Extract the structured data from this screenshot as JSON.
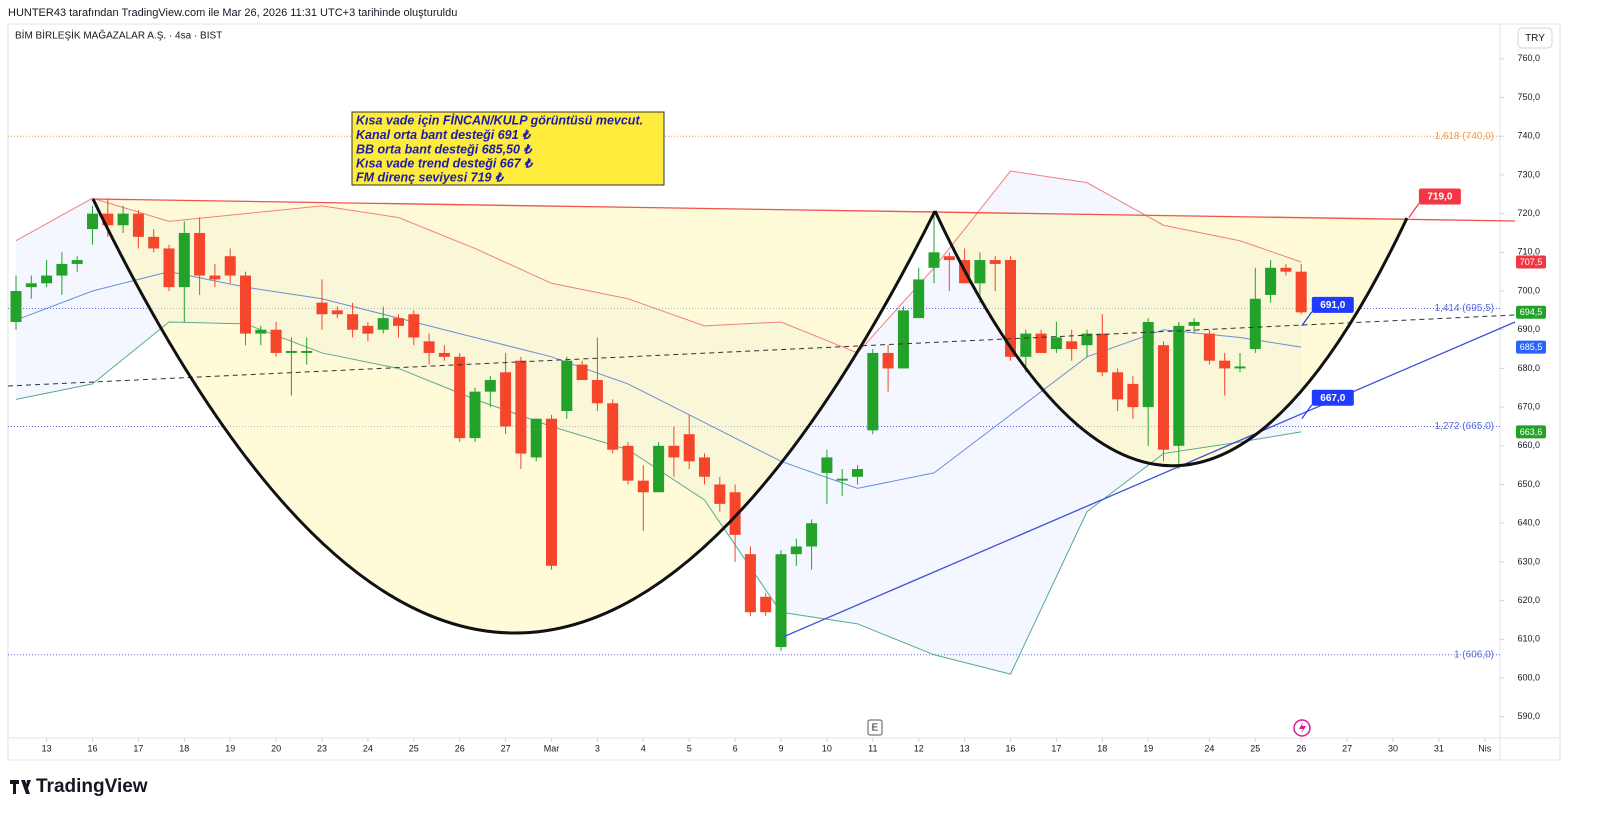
{
  "header": {
    "text": "HUNTER43 tarafından TradingView.com ile Mar 26, 2026 11:31 UTC+3 tarihinde oluşturuldu"
  },
  "symbol": "BİM BİRLEŞİK MAĞAZALAR A.Ş. · 4sa · BIST",
  "currency": "TRY",
  "event_icon": "E",
  "brand": "TradingView",
  "note": [
    "Kısa vade için FİNCAN/KULP görüntüsü mevcut.",
    "Kanal orta bant desteği 691 ₺",
    "BB orta bant desteği 685,50 ₺",
    "Kısa vade trend desteği 667 ₺",
    "FM direnç seviyesi 719 ₺"
  ],
  "chart_data": {
    "type": "candlestick",
    "up_color": "#22a22a",
    "down_color": "#f5452b",
    "open": [
      692,
      701,
      702,
      704,
      707,
      716,
      720,
      717,
      720,
      714,
      711,
      701,
      715,
      704,
      709,
      704,
      689,
      690,
      684,
      684,
      697,
      695,
      694,
      691,
      690,
      693,
      694,
      687,
      684,
      683,
      662,
      674,
      679,
      682,
      657,
      667,
      669,
      681,
      677,
      671,
      660,
      651,
      648,
      660,
      663,
      657,
      650,
      648,
      632,
      621,
      608,
      632,
      634,
      653,
      651,
      652,
      664,
      684,
      680,
      693,
      706,
      709,
      708,
      702,
      708,
      708,
      683,
      689,
      685,
      687,
      686,
      689,
      679,
      676,
      670,
      686,
      660,
      691,
      689,
      682,
      680,
      685,
      699,
      706,
      705
    ],
    "high": [
      704,
      704,
      708,
      710,
      709,
      722,
      724,
      722,
      721,
      716,
      712,
      718,
      719,
      707,
      711,
      705,
      691,
      692,
      688,
      688,
      703,
      696,
      697,
      692,
      696,
      694,
      695,
      689,
      686,
      684,
      675,
      678,
      684,
      683,
      667,
      668,
      683,
      682,
      688,
      672,
      661,
      655,
      661,
      665,
      668,
      658,
      652,
      650,
      634,
      622,
      633,
      636,
      641,
      659,
      654,
      655,
      685,
      686,
      696,
      706,
      720,
      710,
      711,
      710,
      709,
      709,
      690,
      690,
      692,
      690,
      690,
      694,
      680,
      678,
      693,
      687,
      692,
      693,
      690,
      684,
      684,
      706,
      708,
      707,
      707
    ],
    "low": [
      690,
      698,
      701,
      699,
      705,
      712,
      714,
      715,
      711,
      710,
      700,
      692,
      699,
      701,
      702,
      686,
      686,
      683,
      673,
      681,
      690,
      693,
      688,
      687,
      689,
      688,
      686,
      681,
      682,
      661,
      661,
      670,
      663,
      654,
      656,
      628,
      667,
      677,
      669,
      658,
      650,
      638,
      648,
      652,
      654,
      650,
      643,
      630,
      616,
      616,
      607,
      629,
      628,
      645,
      647,
      650,
      663,
      674,
      680,
      693,
      702,
      700,
      702,
      697,
      700,
      682,
      679,
      684,
      684,
      682,
      683,
      678,
      669,
      667,
      660,
      656,
      654,
      689,
      681,
      673,
      679,
      684,
      697,
      704,
      694
    ],
    "close": [
      700,
      702,
      704,
      707,
      708,
      720,
      717,
      720,
      714,
      711,
      701,
      715,
      704,
      703,
      704,
      689,
      690,
      684,
      684.5,
      684.5,
      694,
      694,
      690,
      689,
      693,
      691,
      688,
      684,
      683,
      662,
      674,
      677,
      665,
      658,
      667,
      629,
      682,
      677,
      671,
      659,
      651,
      648,
      660,
      657,
      656,
      652,
      645,
      637,
      617,
      617,
      632,
      634,
      640,
      657,
      651.5,
      654,
      684,
      680,
      695,
      703,
      710,
      708,
      702,
      708,
      707,
      683,
      689,
      684,
      688,
      685,
      689,
      679,
      672,
      670,
      692,
      659,
      691,
      692,
      682,
      680,
      680.5,
      698,
      706,
      705,
      694.5
    ],
    "xticks": [
      {
        "value": 2,
        "label": "13"
      },
      {
        "value": 5,
        "label": "16"
      },
      {
        "value": 8,
        "label": "17"
      },
      {
        "value": 11,
        "label": "18"
      },
      {
        "value": 14,
        "label": "19"
      },
      {
        "value": 17,
        "label": "20"
      },
      {
        "value": 20,
        "label": "23"
      },
      {
        "value": 23,
        "label": "24"
      },
      {
        "value": 26,
        "label": "25"
      },
      {
        "value": 29,
        "label": "26"
      },
      {
        "value": 32,
        "label": "27"
      },
      {
        "value": 35,
        "label": "Mar"
      },
      {
        "value": 38,
        "label": "3"
      },
      {
        "value": 41,
        "label": "4"
      },
      {
        "value": 44,
        "label": "5"
      },
      {
        "value": 47,
        "label": "6"
      },
      {
        "value": 50,
        "label": "9"
      },
      {
        "value": 53,
        "label": "10"
      },
      {
        "value": 56,
        "label": "11"
      },
      {
        "value": 59,
        "label": "12"
      },
      {
        "value": 62,
        "label": "13"
      },
      {
        "value": 65,
        "label": "16"
      },
      {
        "value": 68,
        "label": "17"
      },
      {
        "value": 71,
        "label": "18"
      },
      {
        "value": 74,
        "label": "19"
      },
      {
        "value": 78,
        "label": "24"
      },
      {
        "value": 81,
        "label": "25"
      },
      {
        "value": 84,
        "label": "26"
      },
      {
        "value": 87,
        "label": "27"
      },
      {
        "value": 90,
        "label": "30"
      },
      {
        "value": 93,
        "label": "31"
      },
      {
        "value": 96,
        "label": "Nis"
      }
    ],
    "ylim": [
      584.5,
      769
    ],
    "yticks": [
      {
        "value": 590,
        "label": "590,0"
      },
      {
        "value": 600,
        "label": "600,0"
      },
      {
        "value": 610,
        "label": "610,0"
      },
      {
        "value": 620,
        "label": "620,0"
      },
      {
        "value": 630,
        "label": "630,0"
      },
      {
        "value": 640,
        "label": "640,0"
      },
      {
        "value": 650,
        "label": "650,0"
      },
      {
        "value": 660,
        "label": "660,0"
      },
      {
        "value": 670,
        "label": "670,0"
      },
      {
        "value": 680,
        "label": "680,0"
      },
      {
        "value": 690,
        "label": "690,0"
      },
      {
        "value": 700,
        "label": "700,0"
      },
      {
        "value": 710,
        "label": "710,0"
      },
      {
        "value": 720,
        "label": "720,0"
      },
      {
        "value": 730,
        "label": "730,0"
      },
      {
        "value": 740,
        "label": "740,0"
      },
      {
        "value": 750,
        "label": "750,0"
      },
      {
        "value": 760,
        "label": "760,0"
      }
    ],
    "bands_x": [
      0,
      5,
      10,
      15,
      20,
      25,
      30,
      35,
      40,
      45,
      50,
      55,
      60,
      65,
      70,
      75,
      80,
      84
    ],
    "bands": [
      {
        "color": "#f08080",
        "values": [
          713,
          724,
          718,
          720,
          722,
          719,
          711,
          702,
          698,
          691,
          692,
          684,
          706,
          731,
          728,
          717,
          713,
          707.5
        ]
      },
      {
        "color": "#6b8fd8",
        "values": [
          692.5,
          700,
          705,
          701,
          698,
          693,
          688,
          683,
          676,
          666,
          656,
          649,
          653,
          668,
          683,
          690,
          688,
          685.5
        ]
      },
      {
        "color": "#5aaa8c",
        "values": [
          672,
          676,
          692,
          691.5,
          684,
          680,
          672,
          665,
          659,
          646,
          617,
          614,
          606,
          601,
          643,
          658,
          661,
          663.6
        ]
      }
    ],
    "levels": [
      {
        "value": 740,
        "label": "1,618 (740,0)",
        "color": "#f29a4a"
      },
      {
        "value": 695.5,
        "label": "1,414 (695,5)",
        "color": "#5a6ad8"
      },
      {
        "value": 665,
        "label": "1,272 (665,0)",
        "color": "#5a6ad8"
      },
      {
        "value": 606,
        "label": "1 (606,0)",
        "color": "#5a6ad8"
      }
    ],
    "badges": [
      {
        "value": 707.5,
        "label": "707,5",
        "color": "#f23645"
      },
      {
        "value": 694.5,
        "label": "694,5",
        "color": "#22a22a"
      },
      {
        "value": 685.5,
        "label": "685,5",
        "color": "#2962ff"
      },
      {
        "value": 663.6,
        "label": "663,6",
        "color": "#22a22a"
      }
    ],
    "callouts": [
      {
        "x": 93,
        "value": 719,
        "label": "719,0",
        "color": "#f23645"
      },
      {
        "x": 86,
        "value": 691,
        "label": "691,0",
        "color": "#1f3bff"
      },
      {
        "x": 86,
        "value": 667,
        "label": "667,0",
        "color": "#1f3bff"
      }
    ]
  }
}
